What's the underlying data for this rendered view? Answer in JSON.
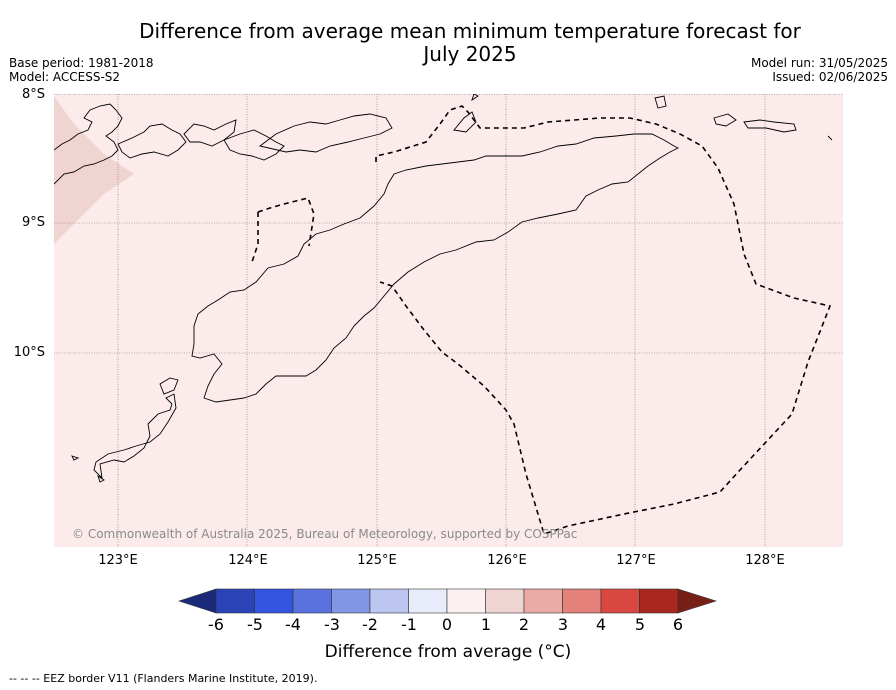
{
  "title_line1": "Difference from average mean minimum temperature forecast for",
  "title_line2": "July 2025",
  "base_period": "Base period: 1981-2018",
  "model": "Model: ACCESS-S2",
  "model_run": "Model run: 31/05/2025",
  "issued": "Issued: 02/06/2025",
  "lat_labels": [
    "8°S",
    "9°S",
    "10°S"
  ],
  "lon_labels": [
    "123°E",
    "124°E",
    "125°E",
    "126°E",
    "127°E",
    "128°E"
  ],
  "copyright": "© Commonwealth of Australia 2025, Bureau of Meteorology, supported by COSPPac",
  "colorbar": {
    "ticks": [
      "-6",
      "-5",
      "-4",
      "-3",
      "-2",
      "-1",
      "0",
      "1",
      "2",
      "3",
      "4",
      "5",
      "6"
    ],
    "colors": [
      "#1a2a78",
      "#2a44b8",
      "#3455e0",
      "#5a72e0",
      "#8296e6",
      "#bcc6f0",
      "#e8ecfa",
      "#fcf0f0",
      "#f0d4d2",
      "#eaaaa6",
      "#e4817a",
      "#d84840",
      "#a82820",
      "#782018"
    ],
    "label": "Difference from average (°C)"
  },
  "map": {
    "background_color": "#fbeceb",
    "anomaly_range": "0 to 1",
    "darker_region_color": "#f0d4d2"
  },
  "footnote": "-- -- -- EEZ border V11 (Flanders Marine Institute, 2019)."
}
